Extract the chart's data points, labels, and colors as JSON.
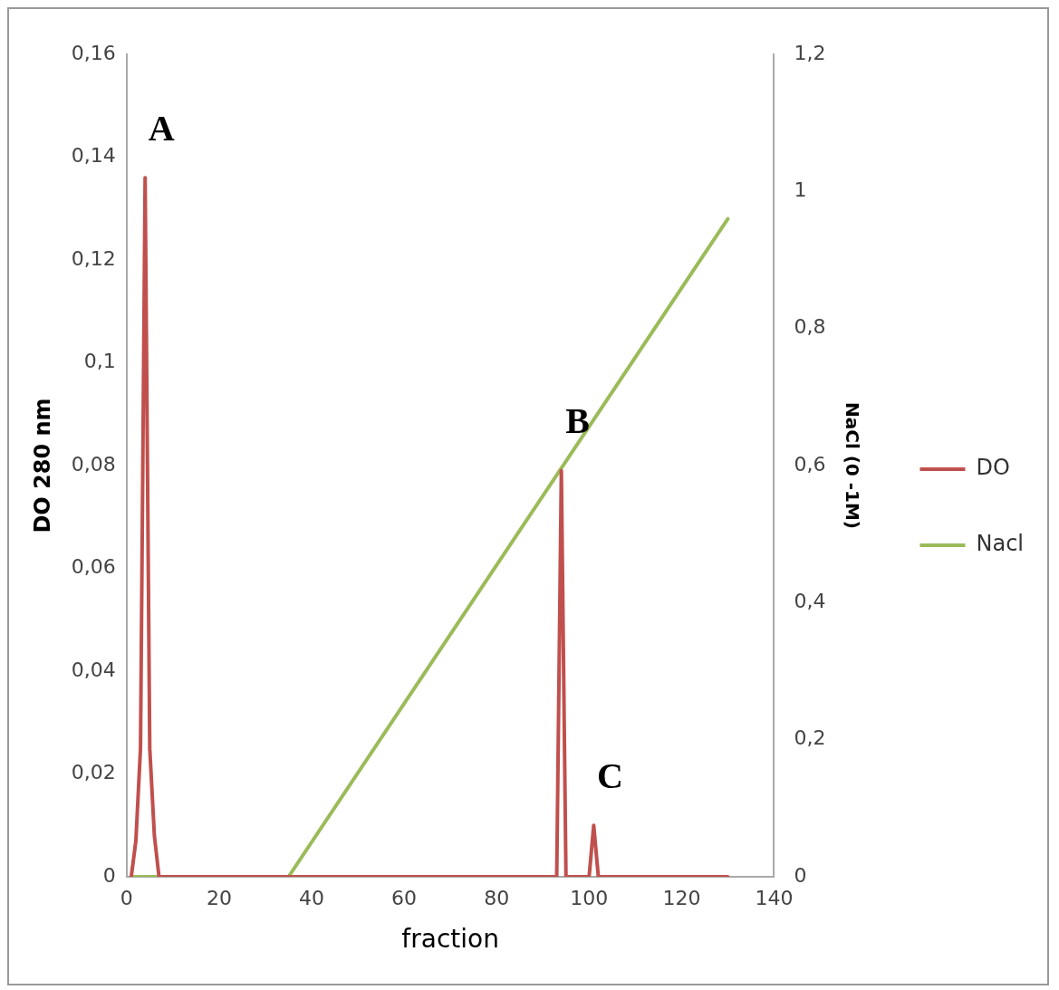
{
  "chart_data": {
    "type": "line",
    "xlabel": "fraction",
    "ylabel": "DO 280 nm",
    "y2label": "NaCl (0 -1M)",
    "xlim": [
      0,
      140
    ],
    "xticks": [
      0,
      20,
      40,
      60,
      80,
      100,
      120,
      140
    ],
    "ylim": [
      0,
      0.16
    ],
    "yticks": [
      {
        "value": 0,
        "label": "0"
      },
      {
        "value": 0.02,
        "label": "0,02"
      },
      {
        "value": 0.04,
        "label": "0,04"
      },
      {
        "value": 0.06,
        "label": "0,06"
      },
      {
        "value": 0.08,
        "label": "0,08"
      },
      {
        "value": 0.1,
        "label": "0,1"
      },
      {
        "value": 0.12,
        "label": "0,12"
      },
      {
        "value": 0.14,
        "label": "0,14"
      },
      {
        "value": 0.16,
        "label": "0,16"
      }
    ],
    "y2lim": [
      0,
      1.2
    ],
    "y2ticks": [
      {
        "value": 0,
        "label": "0"
      },
      {
        "value": 0.2,
        "label": "0,2"
      },
      {
        "value": 0.4,
        "label": "0,4"
      },
      {
        "value": 0.6,
        "label": "0,6"
      },
      {
        "value": 0.8,
        "label": "0,8"
      },
      {
        "value": 1,
        "label": "1"
      },
      {
        "value": 1.2,
        "label": "1,2"
      }
    ],
    "grid": false,
    "legend": "right",
    "marker": "none",
    "line_style": "solid",
    "series": [
      {
        "name": "DO",
        "color": "#c0504d",
        "x": [
          1,
          2,
          3,
          4,
          5,
          6,
          7,
          93,
          94,
          95,
          100,
          101,
          102,
          130
        ],
        "values": [
          0,
          0.007,
          0.025,
          0.136,
          0.025,
          0.008,
          0,
          0,
          0.079,
          0,
          0,
          0.01,
          0,
          0
        ]
      },
      {
        "name": "Nacl",
        "color": "#9bbb59",
        "axis": "y2",
        "x": [
          1,
          35,
          130
        ],
        "values": [
          0,
          0,
          0.96
        ]
      }
    ],
    "annotations": [
      {
        "text": "A",
        "x": 4,
        "y": 0.136
      },
      {
        "text": "B",
        "x": 94,
        "y": 0.079
      },
      {
        "text": "C",
        "x": 101,
        "y": 0.01
      }
    ]
  }
}
